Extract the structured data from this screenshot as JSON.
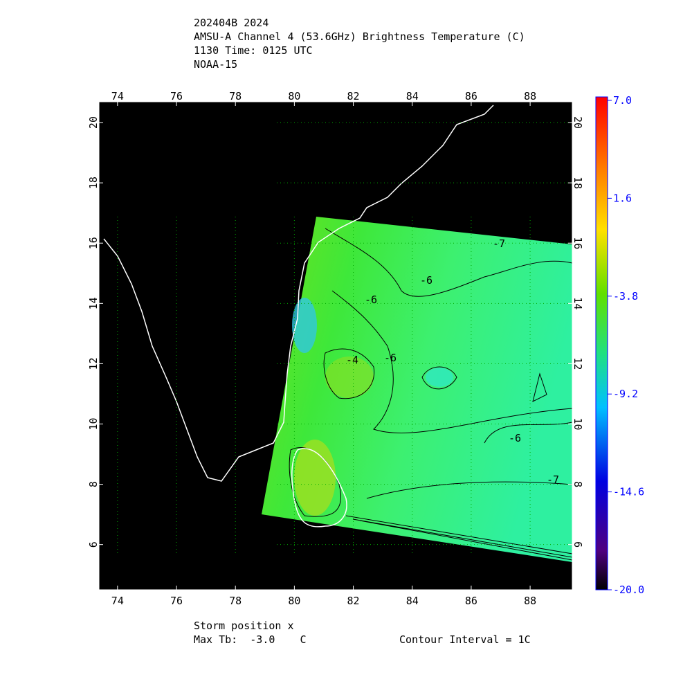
{
  "header": {
    "lines": [
      "202404B 2024",
      "AMSU-A Channel 4 (53.6GHz) Brightness Temperature (C)",
      "1130 Time: 0125 UTC",
      "NOAA-15"
    ]
  },
  "map": {
    "lon_range": [
      73.37,
      89.43
    ],
    "lat_range": [
      4.5,
      20.69
    ],
    "lon_ticks": [
      74,
      76,
      78,
      80,
      82,
      84,
      86,
      88
    ],
    "lat_ticks": [
      6,
      8,
      10,
      12,
      14,
      16,
      18,
      20
    ],
    "contour_labels": [
      "-6",
      "-6",
      "-4",
      "-7",
      "-7",
      "-6",
      "-6"
    ]
  },
  "colorbar": {
    "range": [
      -20,
      7
    ],
    "ticks": [
      {
        "value": 7,
        "label": "7.0"
      },
      1.6,
      -3.8,
      -9.2,
      -14.6,
      {
        "value": -20,
        "label": "-20.0"
      }
    ]
  },
  "footer": {
    "storm": "Storm position x",
    "max_tb": "Max Tb:  -3.0    C",
    "contour_interval": "Contour Interval = 1C"
  }
}
